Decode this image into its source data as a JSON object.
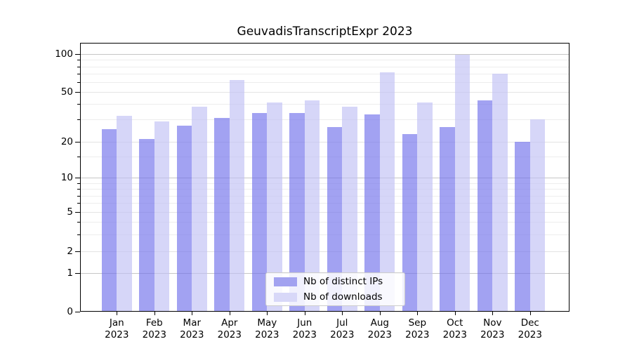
{
  "title": "GeuvadisTranscriptExpr 2023",
  "legend": {
    "items": [
      {
        "label": "Nb of distinct IPs",
        "color": "#a2a2f0"
      },
      {
        "label": "Nb of downloads",
        "color": "#d8d8f8"
      }
    ]
  },
  "chart_data": {
    "type": "bar",
    "title": "GeuvadisTranscriptExpr 2023",
    "months": [
      "Jan",
      "Feb",
      "Mar",
      "Apr",
      "May",
      "Jun",
      "Jul",
      "Aug",
      "Sep",
      "Oct",
      "Nov",
      "Dec"
    ],
    "year_label": "2023",
    "series": [
      {
        "name": "Nb of distinct IPs",
        "color": "#a2a2f0",
        "bar_fill": "rgba(112,112,235,0.65)",
        "values": [
          25,
          21,
          27,
          31,
          34,
          34,
          26,
          33,
          23,
          26,
          43,
          20
        ]
      },
      {
        "name": "Nb of downloads",
        "color": "#d8d8f8",
        "bar_fill": "rgba(192,192,244,0.65)",
        "values": [
          32,
          29,
          38,
          62,
          41,
          43,
          38,
          72,
          41,
          99,
          70,
          30
        ]
      }
    ],
    "yscale": "asinh",
    "yticks": [
      0,
      1,
      2,
      5,
      10,
      20,
      50,
      100
    ],
    "yticks_minor": [
      3,
      4,
      6,
      7,
      8,
      9,
      15,
      30,
      40,
      60,
      70,
      80,
      90
    ],
    "ylim": [
      0,
      123
    ],
    "grid": true,
    "grid_color_strong": "#c6c6c6",
    "grid_color_weak": "#e4e4e4",
    "grid_color_minor": "#ededed",
    "legend_position": "lower center"
  }
}
